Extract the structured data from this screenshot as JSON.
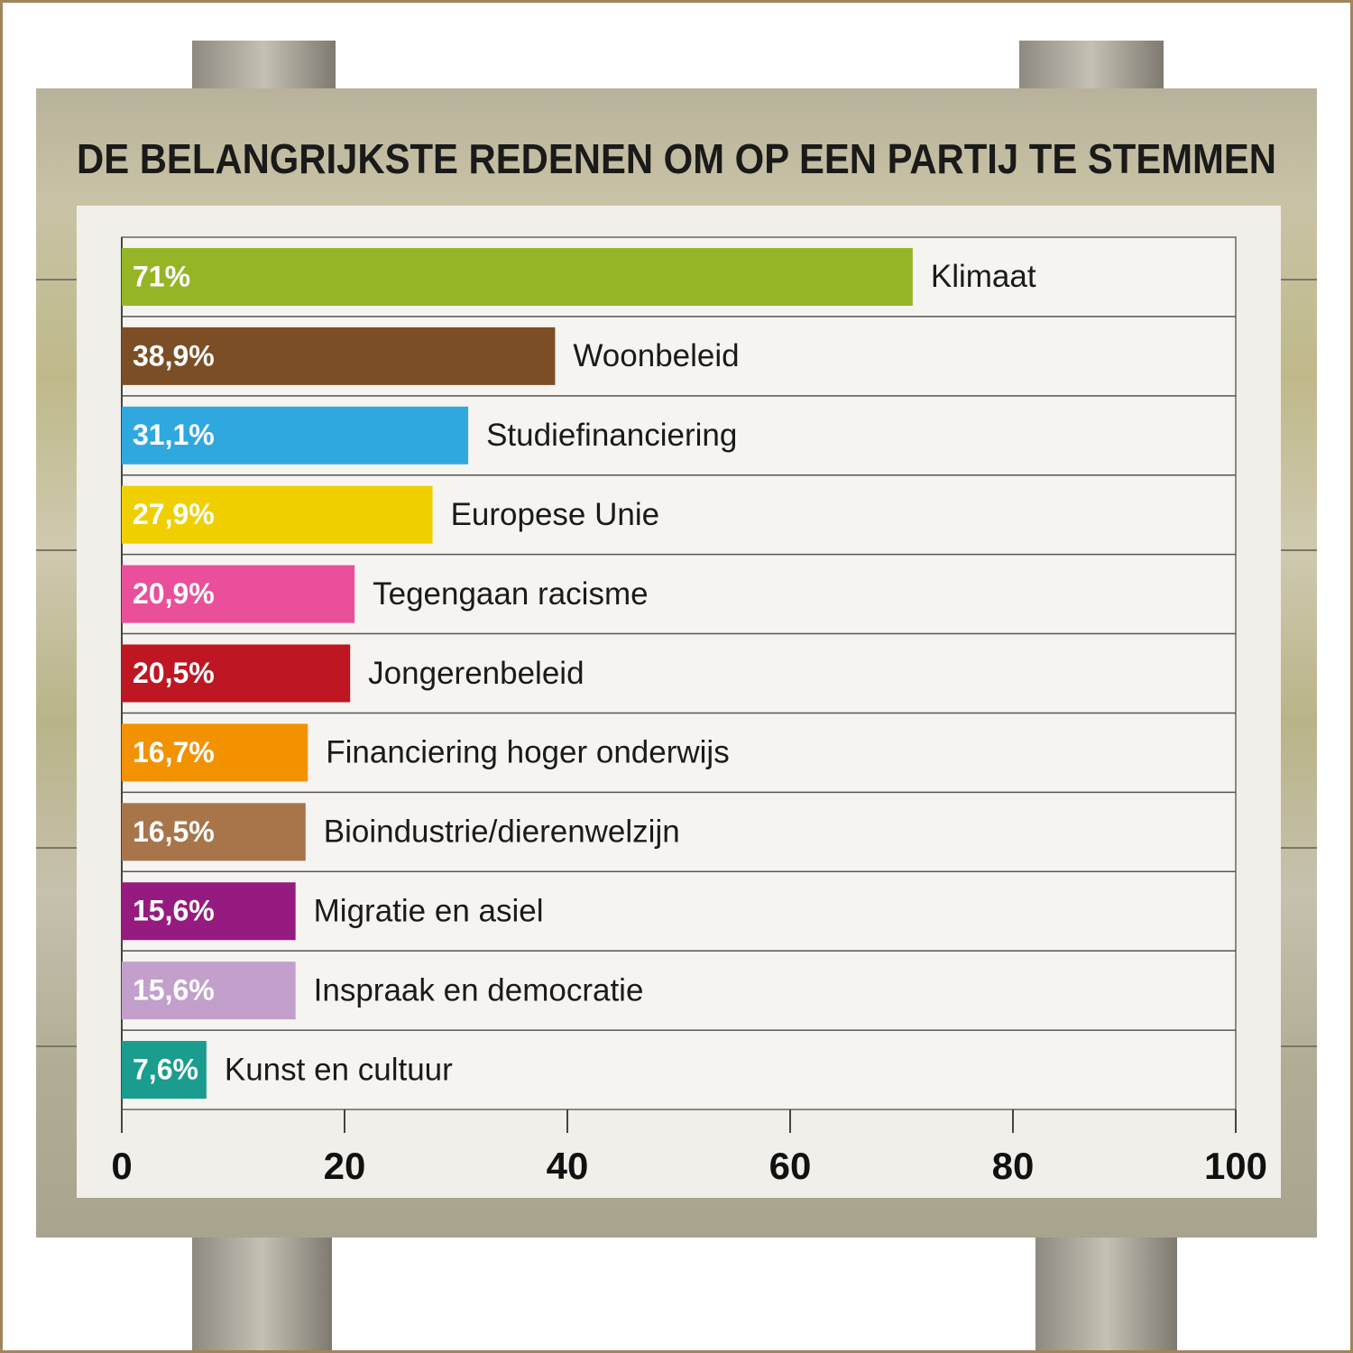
{
  "chart_data": {
    "type": "bar",
    "orientation": "horizontal",
    "title": "DE BELANGRIJKSTE REDENEN OM OP EEN PARTIJ TE STEMMEN",
    "categories": [
      "Klimaat",
      "Woonbeleid",
      "Studiefinanciering",
      "Europese Unie",
      "Tegengaan racisme",
      "Jongerenbeleid",
      "Financiering hoger onderwijs",
      "Bioindustrie/dierenwelzijn",
      "Migratie en asiel",
      "Inspraak en democratie",
      "Kunst en cultuur"
    ],
    "values": [
      71,
      38.9,
      31.1,
      27.9,
      20.9,
      20.5,
      16.7,
      16.5,
      15.6,
      15.6,
      7.6
    ],
    "value_labels": [
      "71%",
      "38,9%",
      "31,1%",
      "27,9%",
      "20,9%",
      "20,5%",
      "16,7%",
      "16,5%",
      "15,6%",
      "15,6%",
      "7,6%"
    ],
    "colors": [
      "#95b526",
      "#7c4e25",
      "#2fa8e0",
      "#f0cf00",
      "#e94f9a",
      "#be1622",
      "#f39200",
      "#a8744a",
      "#951b81",
      "#c39fcc",
      "#1a9c8f"
    ],
    "xlim": [
      0,
      100
    ],
    "xticks": [
      0,
      20,
      40,
      60,
      80,
      100
    ]
  }
}
